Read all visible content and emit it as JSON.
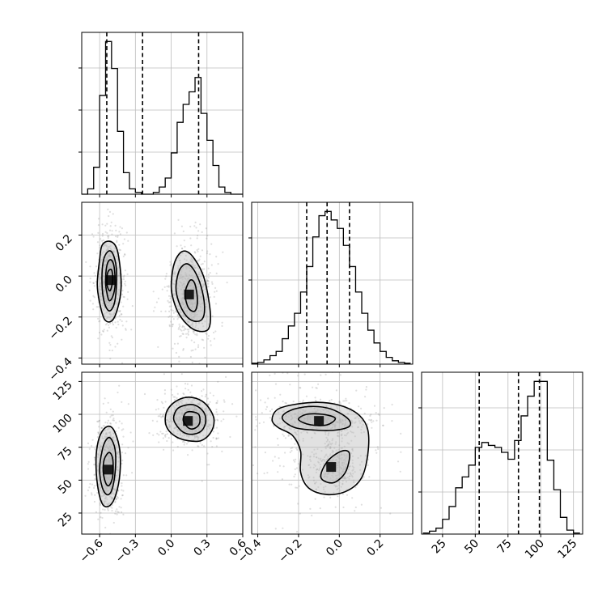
{
  "chart_data": {
    "type": "corner",
    "variables": [
      {
        "range": [
          -0.75,
          0.6
        ],
        "ticks": [
          -0.6,
          -0.3,
          0.0,
          0.3,
          0.6
        ],
        "tick_labels": [
          "−0.6",
          "−0.3",
          "0.0",
          "0.3",
          "0.6"
        ],
        "quantiles": [
          -0.54,
          -0.24,
          0.23
        ],
        "hist_bins": [
          -0.75,
          -0.7,
          -0.65,
          -0.6,
          -0.55,
          -0.5,
          -0.45,
          -0.4,
          -0.35,
          -0.3,
          -0.25,
          -0.2,
          -0.15,
          -0.1,
          -0.05,
          0.0,
          0.05,
          0.1,
          0.15,
          0.2,
          0.25,
          0.3,
          0.35,
          0.4,
          0.45,
          0.5,
          0.55,
          0.6
        ],
        "hist_counts": [
          0,
          3,
          15,
          55,
          85,
          70,
          35,
          12,
          3,
          1,
          0,
          0,
          1,
          4,
          9,
          23,
          40,
          50,
          57,
          65,
          45,
          30,
          16,
          4,
          1,
          0,
          0
        ]
      },
      {
        "range": [
          -0.43,
          0.36
        ],
        "ticks": [
          -0.4,
          -0.2,
          0.0,
          0.2
        ],
        "tick_labels": [
          "−0.4",
          "−0.2",
          "0.0",
          "0.2"
        ],
        "quantiles": [
          -0.16,
          -0.06,
          0.05
        ],
        "hist_bins": [
          -0.43,
          -0.4,
          -0.37,
          -0.34,
          -0.31,
          -0.28,
          -0.25,
          -0.22,
          -0.19,
          -0.16,
          -0.13,
          -0.1,
          -0.07,
          -0.04,
          -0.01,
          0.02,
          0.05,
          0.08,
          0.11,
          0.14,
          0.17,
          0.2,
          0.23,
          0.26,
          0.29,
          0.32,
          0.35
        ],
        "hist_counts": [
          1,
          2,
          5,
          10,
          15,
          30,
          45,
          60,
          85,
          115,
          150,
          175,
          180,
          170,
          160,
          140,
          115,
          85,
          60,
          40,
          25,
          15,
          8,
          4,
          2,
          1
        ]
      },
      {
        "range": [
          9,
          132
        ],
        "ticks": [
          25,
          50,
          75,
          100,
          125
        ],
        "tick_labels": [
          "25",
          "50",
          "75",
          "100",
          "125"
        ],
        "quantiles": [
          53,
          83,
          99
        ],
        "hist_bins": [
          10,
          15,
          20,
          25,
          30,
          35,
          40,
          45,
          50,
          55,
          60,
          65,
          70,
          75,
          80,
          85,
          90,
          95,
          100,
          105,
          110,
          115,
          120,
          125,
          130
        ],
        "hist_counts": [
          1,
          3,
          6,
          15,
          28,
          47,
          58,
          70,
          88,
          93,
          90,
          88,
          83,
          76,
          95,
          120,
          140,
          155,
          155,
          75,
          45,
          17,
          4,
          1
        ]
      }
    ],
    "joint": [
      {
        "pair": [
          0,
          1
        ],
        "levels": [
          [
            [
              -0.62,
              -0.04
            ],
            [
              -0.6,
              0.08
            ],
            [
              -0.58,
              0.15
            ],
            [
              -0.52,
              0.17
            ],
            [
              -0.46,
              0.14
            ],
            [
              -0.43,
              0.05
            ],
            [
              -0.42,
              -0.06
            ],
            [
              -0.45,
              -0.16
            ],
            [
              -0.5,
              -0.22
            ],
            [
              -0.56,
              -0.21
            ],
            [
              -0.6,
              -0.13
            ]
          ],
          [
            [
              -0.58,
              -0.04
            ],
            [
              -0.57,
              0.07
            ],
            [
              -0.53,
              0.12
            ],
            [
              -0.49,
              0.11
            ],
            [
              -0.46,
              0.04
            ],
            [
              -0.46,
              -0.06
            ],
            [
              -0.48,
              -0.14
            ],
            [
              -0.52,
              -0.17
            ],
            [
              -0.56,
              -0.13
            ]
          ],
          [
            [
              -0.55,
              -0.03
            ],
            [
              -0.54,
              0.05
            ],
            [
              -0.51,
              0.08
            ],
            [
              -0.48,
              0.05
            ],
            [
              -0.47,
              -0.04
            ],
            [
              -0.49,
              -0.1
            ],
            [
              -0.52,
              -0.12
            ],
            [
              -0.54,
              -0.08
            ]
          ],
          [
            [
              -0.54,
              -0.03
            ],
            [
              -0.53,
              0.02
            ],
            [
              -0.5,
              0.03
            ],
            [
              -0.49,
              -0.02
            ],
            [
              -0.51,
              -0.07
            ],
            [
              -0.53,
              -0.06
            ]
          ],
          [
            [
              0.0,
              -0.05
            ],
            [
              0.02,
              0.05
            ],
            [
              0.07,
              0.11
            ],
            [
              0.13,
              0.12
            ],
            [
              0.2,
              0.08
            ],
            [
              0.27,
              0.0
            ],
            [
              0.31,
              -0.1
            ],
            [
              0.33,
              -0.2
            ],
            [
              0.31,
              -0.26
            ],
            [
              0.24,
              -0.27
            ],
            [
              0.16,
              -0.25
            ],
            [
              0.07,
              -0.19
            ],
            [
              0.02,
              -0.12
            ]
          ],
          [
            [
              0.04,
              -0.05
            ],
            [
              0.07,
              0.03
            ],
            [
              0.13,
              0.06
            ],
            [
              0.19,
              0.03
            ],
            [
              0.25,
              -0.05
            ],
            [
              0.28,
              -0.15
            ],
            [
              0.26,
              -0.21
            ],
            [
              0.19,
              -0.22
            ],
            [
              0.12,
              -0.19
            ],
            [
              0.06,
              -0.12
            ]
          ],
          [
            [
              0.12,
              -0.07
            ],
            [
              0.16,
              -0.02
            ],
            [
              0.2,
              -0.04
            ],
            [
              0.22,
              -0.12
            ],
            [
              0.2,
              -0.17
            ],
            [
              0.15,
              -0.16
            ],
            [
              0.12,
              -0.11
            ]
          ]
        ],
        "peaks": [
          [
            -0.505,
            -0.02
          ],
          [
            0.15,
            -0.09
          ]
        ]
      },
      {
        "pair": [
          0,
          2
        ],
        "levels": [
          [
            [
              -0.63,
              60
            ],
            [
              -0.62,
              76
            ],
            [
              -0.58,
              87
            ],
            [
              -0.52,
              91
            ],
            [
              -0.47,
              86
            ],
            [
              -0.43,
              72
            ],
            [
              -0.43,
              55
            ],
            [
              -0.46,
              40
            ],
            [
              -0.51,
              31
            ],
            [
              -0.57,
              31
            ],
            [
              -0.61,
              42
            ]
          ],
          [
            [
              -0.6,
              58
            ],
            [
              -0.58,
              72
            ],
            [
              -0.55,
              80
            ],
            [
              -0.51,
              82
            ],
            [
              -0.47,
              73
            ],
            [
              -0.47,
              56
            ],
            [
              -0.5,
              42
            ],
            [
              -0.54,
              39
            ],
            [
              -0.58,
              45
            ]
          ],
          [
            [
              -0.57,
              57
            ],
            [
              -0.56,
              66
            ],
            [
              -0.52,
              71
            ],
            [
              -0.49,
              66
            ],
            [
              -0.49,
              53
            ],
            [
              -0.52,
              46
            ],
            [
              -0.55,
              48
            ]
          ],
          [
            [
              -0.05,
              97
            ],
            [
              -0.02,
              105
            ],
            [
              0.06,
              111
            ],
            [
              0.16,
              113
            ],
            [
              0.26,
              110
            ],
            [
              0.33,
              103
            ],
            [
              0.36,
              95
            ],
            [
              0.33,
              86
            ],
            [
              0.25,
              80
            ],
            [
              0.14,
              80
            ],
            [
              0.04,
              83
            ],
            [
              -0.03,
              89
            ]
          ],
          [
            [
              0.02,
              97
            ],
            [
              0.05,
              104
            ],
            [
              0.12,
              107
            ],
            [
              0.2,
              107
            ],
            [
              0.27,
              102
            ],
            [
              0.29,
              95
            ],
            [
              0.26,
              88
            ],
            [
              0.19,
              85
            ],
            [
              0.11,
              86
            ],
            [
              0.05,
              91
            ]
          ],
          [
            [
              0.1,
              96
            ],
            [
              0.12,
              101
            ],
            [
              0.17,
              102
            ],
            [
              0.23,
              100
            ],
            [
              0.24,
              94
            ],
            [
              0.21,
              90
            ],
            [
              0.16,
              89
            ],
            [
              0.12,
              92
            ]
          ]
        ],
        "peaks": [
          [
            -0.525,
            58
          ],
          [
            0.14,
            95
          ]
        ]
      },
      {
        "pair": [
          1,
          2
        ],
        "levels": [
          [
            [
              -0.33,
              96
            ],
            [
              -0.3,
              104
            ],
            [
              -0.2,
              108
            ],
            [
              -0.08,
              109
            ],
            [
              0.02,
              106
            ],
            [
              0.1,
              99
            ],
            [
              0.14,
              88
            ],
            [
              0.14,
              70
            ],
            [
              0.11,
              52
            ],
            [
              0.04,
              42
            ],
            [
              -0.06,
              39
            ],
            [
              -0.15,
              44
            ],
            [
              -0.19,
              56
            ],
            [
              -0.19,
              72
            ],
            [
              -0.23,
              84
            ],
            [
              -0.3,
              90
            ]
          ],
          [
            [
              -0.28,
              97
            ],
            [
              -0.24,
              103
            ],
            [
              -0.14,
              106
            ],
            [
              -0.04,
              104
            ],
            [
              0.04,
              97
            ],
            [
              0.05,
              91
            ],
            [
              -0.02,
              88
            ],
            [
              -0.12,
              88
            ],
            [
              -0.22,
              90
            ]
          ],
          [
            [
              -0.2,
              96
            ],
            [
              -0.16,
              100
            ],
            [
              -0.08,
              100
            ],
            [
              -0.02,
              97
            ],
            [
              -0.06,
              92
            ],
            [
              -0.14,
              92
            ]
          ],
          [
            [
              -0.09,
              52
            ],
            [
              -0.06,
              64
            ],
            [
              0.01,
              72
            ],
            [
              0.05,
              70
            ],
            [
              0.03,
              56
            ],
            [
              -0.03,
              48
            ]
          ]
        ],
        "peaks": [
          [
            -0.1,
            95
          ],
          [
            -0.04,
            60
          ]
        ]
      }
    ]
  }
}
